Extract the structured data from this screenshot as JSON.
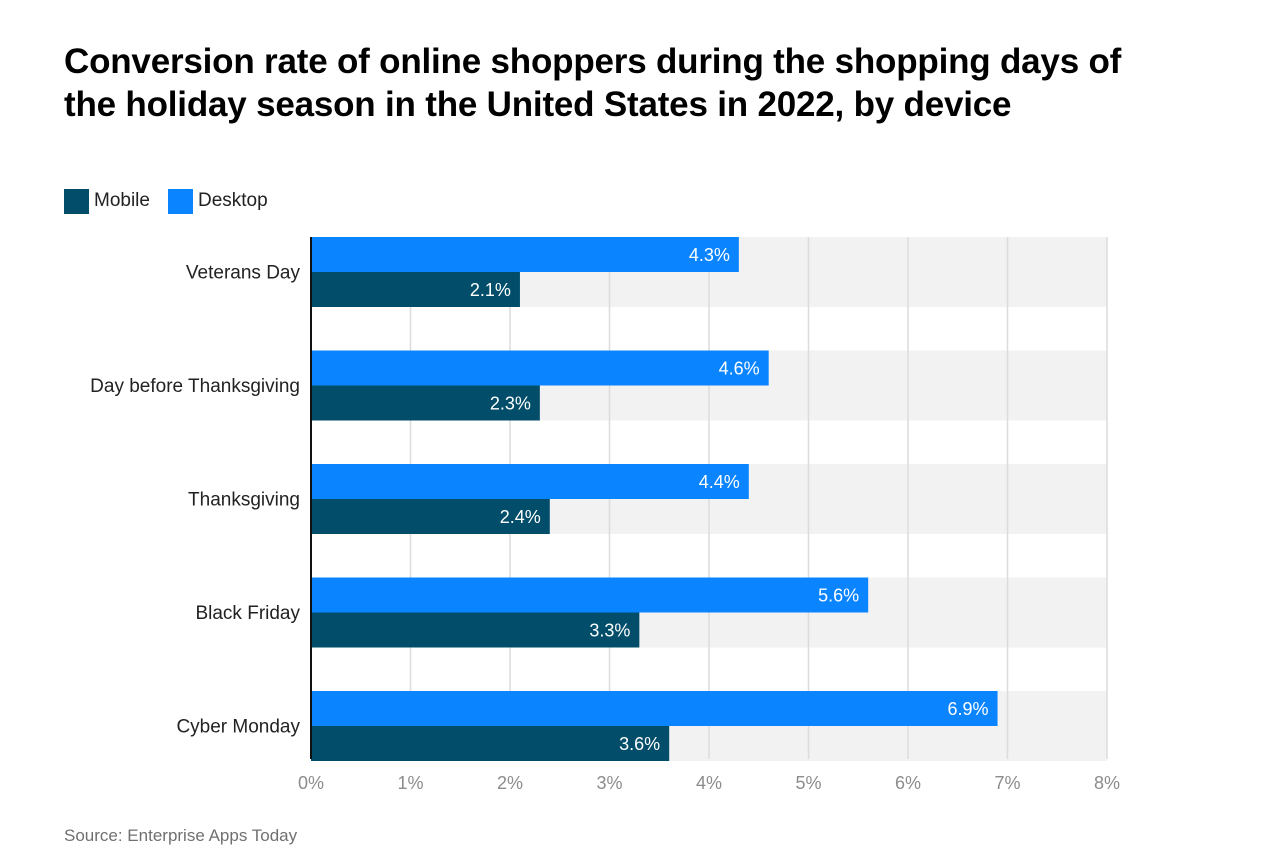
{
  "chart_data": {
    "type": "bar",
    "orientation": "horizontal",
    "title": "Conversion rate of online shoppers during the shopping days of the holiday season in the United States in 2022, by device",
    "categories": [
      "Veterans Day",
      "Day before Thanksgiving",
      "Thanksgiving",
      "Black Friday",
      "Cyber Monday"
    ],
    "series": [
      {
        "name": "Mobile",
        "color": "#024E6A",
        "values": [
          2.1,
          2.3,
          2.4,
          3.3,
          3.6
        ],
        "labels": [
          "2.1%",
          "2.3%",
          "2.4%",
          "3.3%",
          "3.6%"
        ]
      },
      {
        "name": "Desktop",
        "color": "#0A84FF",
        "values": [
          4.3,
          4.6,
          4.4,
          5.6,
          6.9
        ],
        "labels": [
          "4.3%",
          "4.6%",
          "4.4%",
          "5.6%",
          "6.9%"
        ]
      }
    ],
    "xlim": [
      0,
      8
    ],
    "xticks": [
      "0%",
      "1%",
      "2%",
      "3%",
      "4%",
      "5%",
      "6%",
      "7%",
      "8%"
    ],
    "xlabel": "",
    "ylabel": "",
    "grid": true,
    "legend": "top-left",
    "source": "Source: Enterprise Apps Today"
  }
}
